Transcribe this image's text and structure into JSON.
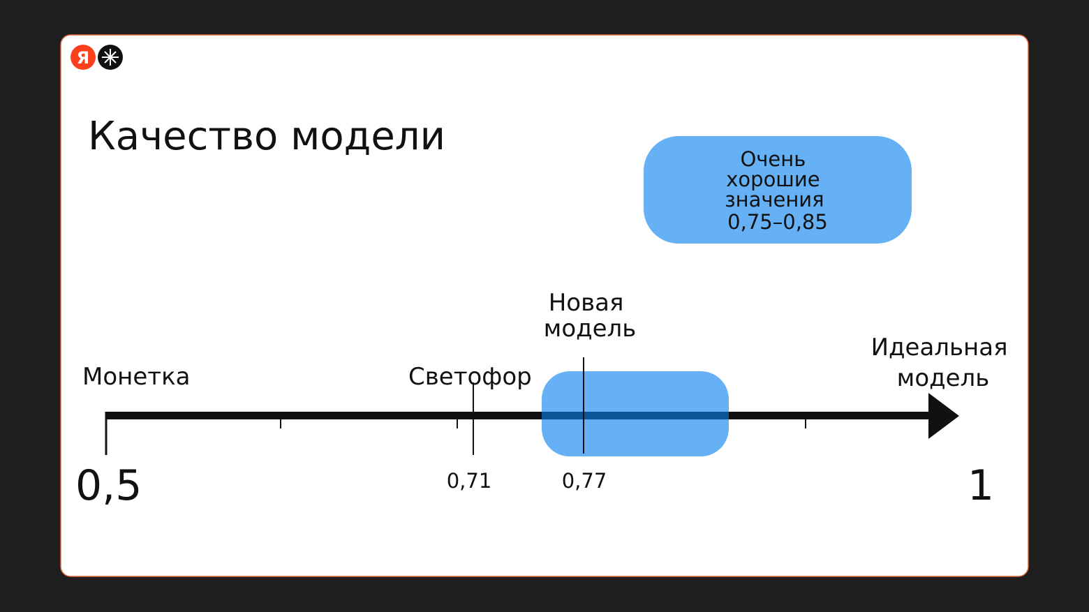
{
  "logo": {
    "letter": "Я"
  },
  "title": "Качество модели",
  "highlight": {
    "lines": [
      "Очень",
      "хорошие",
      "значения",
      "0,75–0,85"
    ]
  },
  "scale": {
    "start": {
      "label": "Монетка",
      "value": "0,5"
    },
    "baseline": {
      "label": "Светофор",
      "value": "0,71"
    },
    "new_model": {
      "lines": [
        "Новая",
        "модель"
      ],
      "value": "0,77"
    },
    "end": {
      "lines": [
        "Идеальная",
        "модель"
      ],
      "value": "1"
    }
  }
}
